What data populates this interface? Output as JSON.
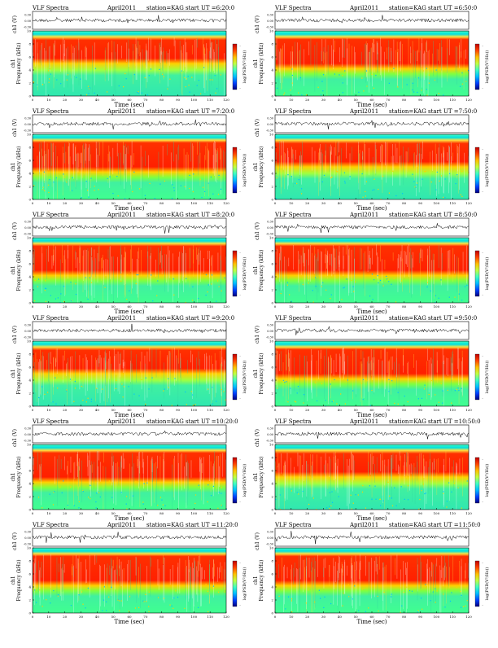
{
  "page": {
    "background": "#ffffff"
  },
  "common": {
    "header_left": "VLF Spectra",
    "date": "April2011",
    "station": "station=KAG",
    "start_prefix": "start  UT  =",
    "xlabel": "Time  (sec)",
    "ylabel_top": "ch1 (V)",
    "ylabel_spec_1": "ch1",
    "ylabel_spec_2": "Frequency  (kHz)",
    "colorbar_label": "log(PSD(V²/Hz))",
    "top_ticks": [
      "0.30",
      "0.00",
      "-0.30"
    ],
    "x_ticks": [
      "0",
      "10",
      "20",
      "30",
      "40",
      "50",
      "60",
      "70",
      "80",
      "90",
      "100",
      "110",
      "120"
    ],
    "y_ticks": [
      "0",
      "2",
      "4",
      "6",
      "8",
      "10"
    ],
    "colorbar_ticks": [
      "-",
      "-"
    ],
    "colormap": [
      "#00007f",
      "#0040ff",
      "#00c0ff",
      "#40ffc0",
      "#c0ff40",
      "#ffc000",
      "#ff4000",
      "#c00000"
    ]
  },
  "panels": [
    {
      "start_time": "6:20:0"
    },
    {
      "start_time": "6:50:0"
    },
    {
      "start_time": "7:20:0"
    },
    {
      "start_time": "7:50:0"
    },
    {
      "start_time": "8:20:0"
    },
    {
      "start_time": "8:50:0"
    },
    {
      "start_time": "9:20:0"
    },
    {
      "start_time": "9:50:0"
    },
    {
      "start_time": "10:20:0"
    },
    {
      "start_time": "10:50:0"
    },
    {
      "start_time": "11:20:0"
    },
    {
      "start_time": "11:50:0"
    }
  ],
  "chart_data": {
    "type": "heatmap",
    "title": "VLF Spectra",
    "date": "April2011",
    "station": "station=KAG",
    "xlabel": "Time  (sec)",
    "ylabel": "Frequency  (kHz)",
    "xlim": [
      0,
      120
    ],
    "ylim": [
      0,
      10
    ],
    "waveform_ylim": [
      -0.3,
      0.3
    ],
    "start_times_UT": [
      "6:20:0",
      "6:50:0",
      "7:20:0",
      "7:50:0",
      "8:20:0",
      "8:50:0",
      "9:20:0",
      "9:50:0",
      "10:20:0",
      "10:50:0",
      "11:20:0",
      "11:50:0"
    ],
    "band_profiles_kHz": [
      {
        "range": [
          0,
          3.5
        ],
        "level": "low"
      },
      {
        "range": [
          3.5,
          5.0
        ],
        "level": "medium"
      },
      {
        "range": [
          5.0,
          9.0
        ],
        "level": "high"
      },
      {
        "range": [
          9.0,
          10.0
        ],
        "level": "medium"
      }
    ]
  }
}
